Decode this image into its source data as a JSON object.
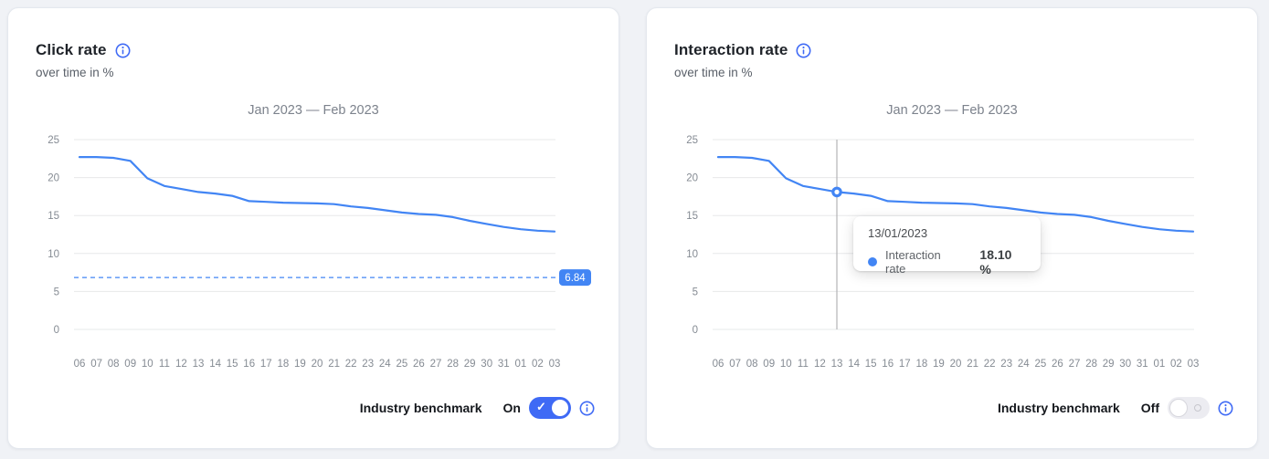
{
  "page": {
    "background": "#f0f2f6"
  },
  "colors": {
    "line": "#4285f4",
    "benchmark": "#4285f4",
    "grid": "#e7e8ea",
    "axis_text": "#858b93",
    "crosshair": "#b3b3b6",
    "accent_blue": "#3f6af5",
    "toggle_off_track": "#ececf1"
  },
  "icons": {
    "info": "info-icon",
    "check": "✓",
    "series_dot": "dot-icon"
  },
  "cards": [
    {
      "title": "Click rate",
      "subtitle": "over time in %",
      "footer": {
        "label": "Industry benchmark",
        "state": "On",
        "toggle_on": true
      }
    },
    {
      "title": "Interaction rate",
      "subtitle": "over time in %",
      "footer": {
        "label": "Industry benchmark",
        "state": "Off",
        "toggle_on": false
      }
    }
  ],
  "chart_data": [
    {
      "type": "line",
      "title": "Jan 2023 — Feb 2023",
      "xlabel": "",
      "ylabel": "",
      "ylim": [
        0,
        25
      ],
      "yticks": [
        0,
        5,
        10,
        15,
        20,
        25
      ],
      "grid": true,
      "legend": false,
      "categories": [
        "06",
        "07",
        "08",
        "09",
        "10",
        "11",
        "12",
        "13",
        "14",
        "15",
        "16",
        "17",
        "18",
        "19",
        "20",
        "21",
        "22",
        "23",
        "24",
        "25",
        "26",
        "27",
        "28",
        "29",
        "30",
        "31",
        "01",
        "02",
        "03"
      ],
      "series": [
        {
          "name": "Click rate",
          "values": [
            22.7,
            22.7,
            22.6,
            22.2,
            19.9,
            18.9,
            18.5,
            18.1,
            17.9,
            17.6,
            16.9,
            16.8,
            16.7,
            16.65,
            16.6,
            16.5,
            16.2,
            16.0,
            15.7,
            15.4,
            15.2,
            15.1,
            14.8,
            14.3,
            13.9,
            13.5,
            13.2,
            13.0,
            12.9
          ]
        }
      ],
      "benchmark": {
        "value": 6.84,
        "label": "6.84",
        "style": "dashed"
      }
    },
    {
      "type": "line",
      "title": "Jan 2023 — Feb 2023",
      "xlabel": "",
      "ylabel": "",
      "ylim": [
        0,
        25
      ],
      "yticks": [
        0,
        5,
        10,
        15,
        20,
        25
      ],
      "grid": true,
      "legend": false,
      "categories": [
        "06",
        "07",
        "08",
        "09",
        "10",
        "11",
        "12",
        "13",
        "14",
        "15",
        "16",
        "17",
        "18",
        "19",
        "20",
        "21",
        "22",
        "23",
        "24",
        "25",
        "26",
        "27",
        "28",
        "29",
        "30",
        "31",
        "01",
        "02",
        "03"
      ],
      "series": [
        {
          "name": "Interaction rate",
          "values": [
            22.7,
            22.7,
            22.6,
            22.2,
            19.9,
            18.9,
            18.5,
            18.1,
            17.9,
            17.6,
            16.9,
            16.8,
            16.7,
            16.65,
            16.6,
            16.5,
            16.2,
            16.0,
            15.7,
            15.4,
            15.2,
            15.1,
            14.8,
            14.3,
            13.9,
            13.5,
            13.2,
            13.0,
            12.9
          ]
        }
      ],
      "highlight": {
        "category": "13",
        "index": 7,
        "value": 18.1
      },
      "tooltip": {
        "date": "13/01/2023",
        "label": "Interaction rate",
        "value": "18.10 %"
      }
    }
  ]
}
